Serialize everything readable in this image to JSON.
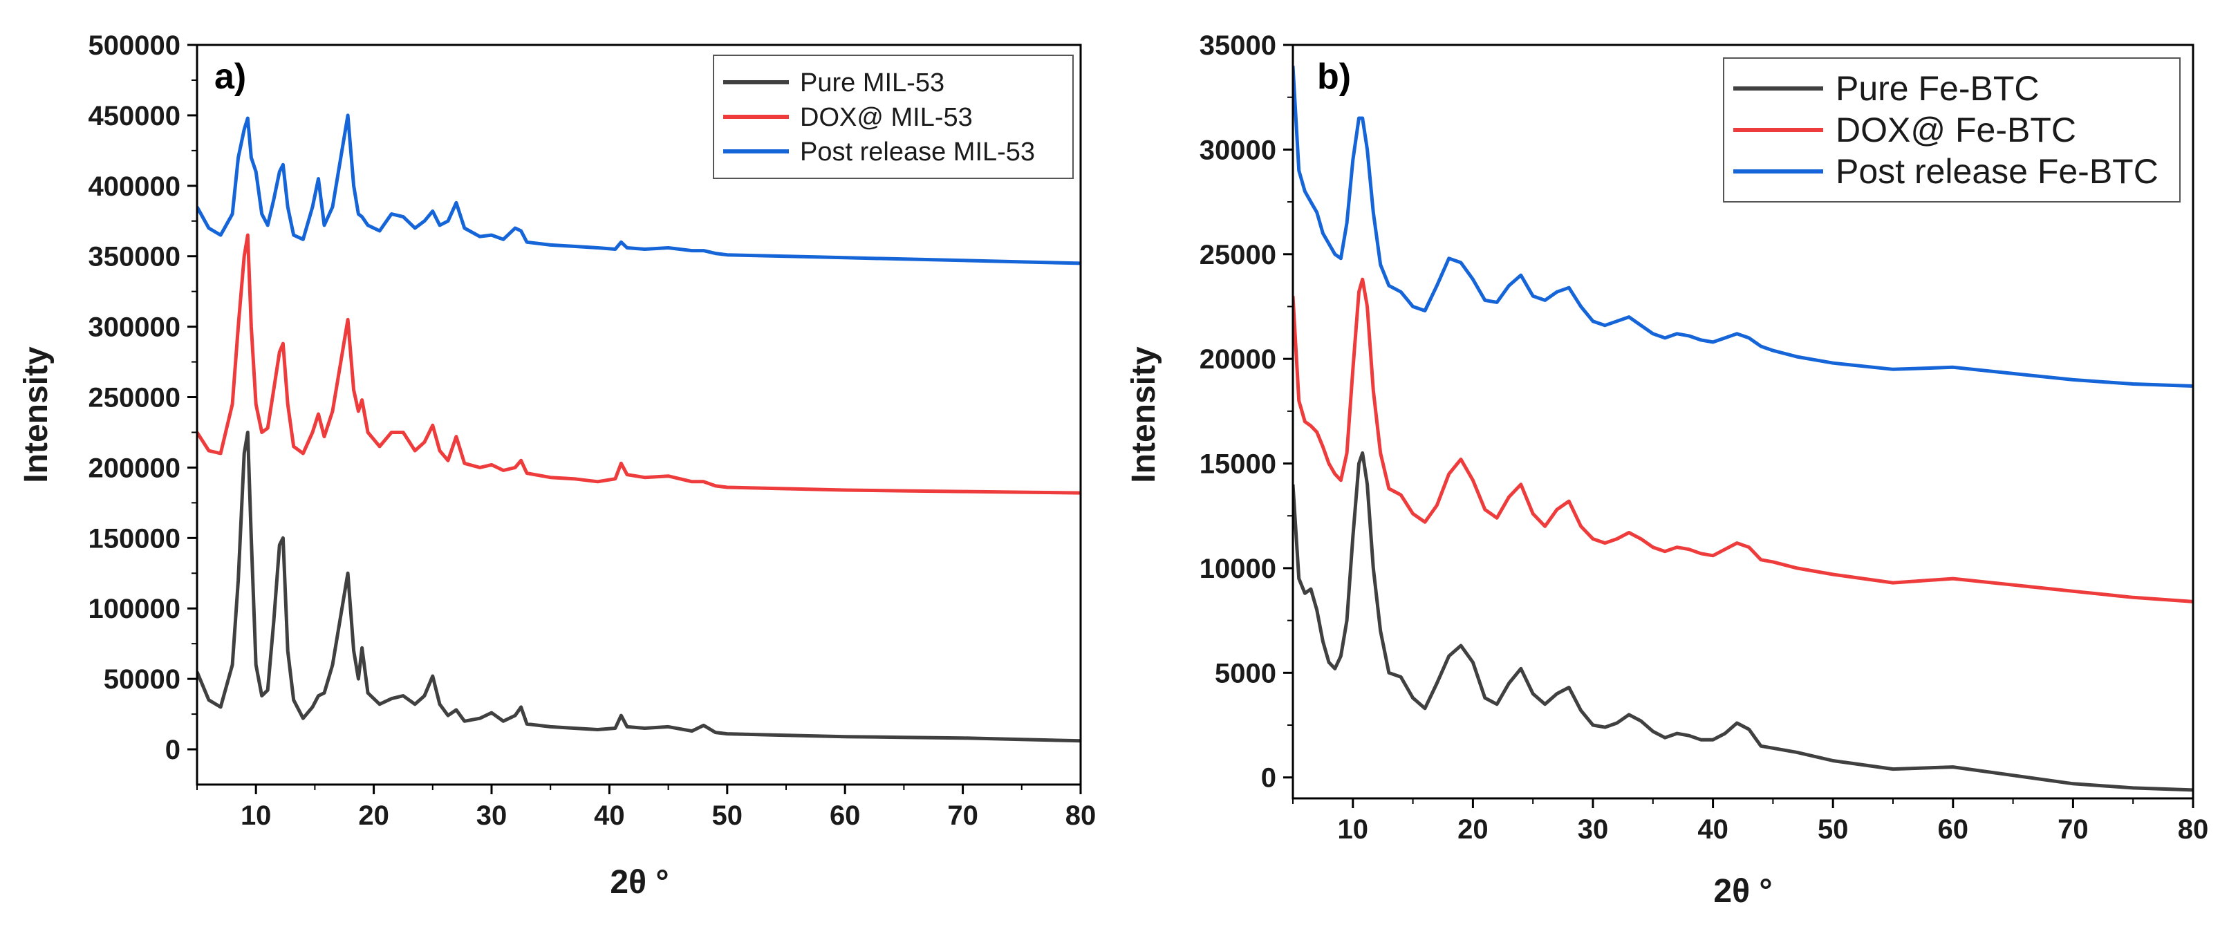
{
  "chart_data": [
    {
      "type": "line",
      "panel_label": "a)",
      "xlabel": "2θ °",
      "ylabel": "Intensity",
      "xlim": [
        5,
        80
      ],
      "ylim": [
        -25000,
        500000
      ],
      "x_ticks": [
        "10",
        "20",
        "30",
        "40",
        "50",
        "60",
        "70",
        "80"
      ],
      "y_ticks": [
        "0",
        "50000",
        "100000",
        "150000",
        "200000",
        "250000",
        "300000",
        "350000",
        "400000",
        "450000",
        "500000"
      ],
      "legend_position": "top-right",
      "series": [
        {
          "name": "Pure MIL-53",
          "color": "#404040",
          "x": [
            5,
            6,
            7,
            8,
            8.5,
            9,
            9.3,
            9.6,
            10,
            10.5,
            11,
            11.5,
            12,
            12.3,
            12.7,
            13.2,
            14,
            14.8,
            15.3,
            15.8,
            16.5,
            17.2,
            17.8,
            18.3,
            18.7,
            19,
            19.5,
            20.5,
            21.5,
            22.5,
            23.5,
            24.3,
            25,
            25.6,
            26.3,
            27,
            27.7,
            29,
            30,
            31,
            32,
            32.5,
            33,
            35,
            37,
            39,
            40.5,
            41,
            41.5,
            43,
            45,
            47,
            48,
            49,
            50,
            55,
            60,
            65,
            70,
            75,
            80
          ],
          "values": [
            55000,
            35000,
            30000,
            60000,
            120000,
            210000,
            225000,
            150000,
            60000,
            38000,
            42000,
            90000,
            145000,
            150000,
            70000,
            35000,
            22000,
            30000,
            38000,
            40000,
            60000,
            95000,
            125000,
            70000,
            50000,
            72000,
            40000,
            32000,
            36000,
            38000,
            32000,
            38000,
            52000,
            32000,
            24000,
            28000,
            20000,
            22000,
            26000,
            20000,
            24000,
            30000,
            18000,
            16000,
            15000,
            14000,
            15000,
            24000,
            16000,
            15000,
            16000,
            13000,
            17000,
            12000,
            11000,
            10000,
            9000,
            8500,
            8000,
            7000,
            6000
          ]
        },
        {
          "name": "DOX@ MIL-53",
          "color": "#ee3b3b",
          "x": [
            5,
            6,
            7,
            8,
            8.5,
            9,
            9.3,
            9.6,
            10,
            10.5,
            11,
            11.5,
            12,
            12.3,
            12.7,
            13.2,
            14,
            14.8,
            15.3,
            15.8,
            16.5,
            17.2,
            17.8,
            18.3,
            18.7,
            19,
            19.5,
            20.5,
            21.5,
            22.5,
            23.5,
            24.3,
            25,
            25.6,
            26.3,
            27,
            27.7,
            29,
            30,
            31,
            32,
            32.5,
            33,
            35,
            37,
            39,
            40.5,
            41,
            41.5,
            43,
            45,
            47,
            48,
            49,
            50,
            55,
            60,
            65,
            70,
            75,
            80
          ],
          "values": [
            225000,
            212000,
            210000,
            245000,
            300000,
            350000,
            365000,
            300000,
            245000,
            225000,
            228000,
            255000,
            282000,
            288000,
            245000,
            215000,
            210000,
            225000,
            238000,
            222000,
            240000,
            275000,
            305000,
            255000,
            240000,
            248000,
            225000,
            215000,
            225000,
            225000,
            212000,
            218000,
            230000,
            212000,
            205000,
            222000,
            203000,
            200000,
            202000,
            198000,
            200000,
            205000,
            196000,
            193000,
            192000,
            190000,
            192000,
            203000,
            195000,
            193000,
            194000,
            190000,
            190000,
            187000,
            186000,
            185000,
            184000,
            183500,
            183000,
            182500,
            182000
          ]
        },
        {
          "name": "Post release MIL-53",
          "color": "#1565d8",
          "x": [
            5,
            6,
            7,
            8,
            8.5,
            9,
            9.3,
            9.6,
            10,
            10.5,
            11,
            11.5,
            12,
            12.3,
            12.7,
            13.2,
            14,
            14.8,
            15.3,
            15.8,
            16.5,
            17.2,
            17.8,
            18.3,
            18.7,
            19,
            19.5,
            20.5,
            21.5,
            22.5,
            23.5,
            24.3,
            25,
            25.6,
            26.3,
            27,
            27.7,
            29,
            30,
            31,
            32,
            32.5,
            33,
            35,
            37,
            39,
            40.5,
            41,
            41.5,
            43,
            45,
            47,
            48,
            49,
            50,
            55,
            60,
            65,
            70,
            75,
            80
          ],
          "values": [
            385000,
            370000,
            365000,
            380000,
            420000,
            440000,
            448000,
            420000,
            410000,
            380000,
            372000,
            390000,
            410000,
            415000,
            385000,
            365000,
            362000,
            385000,
            405000,
            372000,
            385000,
            420000,
            450000,
            400000,
            380000,
            378000,
            372000,
            368000,
            380000,
            378000,
            370000,
            375000,
            382000,
            372000,
            375000,
            388000,
            370000,
            364000,
            365000,
            362000,
            370000,
            368000,
            360000,
            358000,
            357000,
            356000,
            355000,
            360000,
            356000,
            355000,
            356000,
            354000,
            354000,
            352000,
            351000,
            350000,
            349000,
            348000,
            347000,
            346000,
            345000
          ]
        }
      ]
    },
    {
      "type": "line",
      "panel_label": "b)",
      "xlabel": "2θ °",
      "ylabel": "Intensity",
      "xlim": [
        5,
        80
      ],
      "ylim": [
        -1000,
        35000
      ],
      "x_ticks": [
        "10",
        "20",
        "30",
        "40",
        "50",
        "60",
        "70",
        "80"
      ],
      "y_ticks": [
        "0",
        "5000",
        "10000",
        "15000",
        "20000",
        "25000",
        "30000",
        "35000"
      ],
      "legend_position": "top-right",
      "series": [
        {
          "name": "Pure Fe-BTC",
          "color": "#404040",
          "x": [
            5,
            5.5,
            6,
            6.5,
            7,
            7.5,
            8,
            8.5,
            9,
            9.5,
            10,
            10.5,
            10.8,
            11.2,
            11.7,
            12.3,
            13,
            14,
            15,
            16,
            17,
            18,
            19,
            20,
            21,
            22,
            23,
            24,
            25,
            26,
            27,
            28,
            29,
            30,
            31,
            32,
            33,
            34,
            35,
            36,
            37,
            38,
            39,
            40,
            41,
            42,
            43,
            44,
            45,
            47,
            50,
            55,
            60,
            65,
            70,
            75,
            80
          ],
          "values": [
            14000,
            9500,
            8800,
            9000,
            8000,
            6500,
            5500,
            5200,
            5800,
            7500,
            11500,
            15000,
            15500,
            14000,
            10000,
            7000,
            5000,
            4800,
            3800,
            3300,
            4500,
            5800,
            6300,
            5500,
            3800,
            3500,
            4500,
            5200,
            4000,
            3500,
            4000,
            4300,
            3200,
            2500,
            2400,
            2600,
            3000,
            2700,
            2200,
            1900,
            2100,
            2000,
            1800,
            1800,
            2100,
            2600,
            2300,
            1500,
            1400,
            1200,
            800,
            400,
            500,
            100,
            -300,
            -500,
            -600
          ]
        },
        {
          "name": "DOX@ Fe-BTC",
          "color": "#ee3b3b",
          "x": [
            5,
            5.5,
            6,
            6.5,
            7,
            7.5,
            8,
            8.5,
            9,
            9.5,
            10,
            10.5,
            10.8,
            11.2,
            11.7,
            12.3,
            13,
            14,
            15,
            16,
            17,
            18,
            19,
            20,
            21,
            22,
            23,
            24,
            25,
            26,
            27,
            28,
            29,
            30,
            31,
            32,
            33,
            34,
            35,
            36,
            37,
            38,
            39,
            40,
            41,
            42,
            43,
            44,
            45,
            47,
            50,
            55,
            60,
            65,
            70,
            75,
            80
          ],
          "values": [
            23000,
            18000,
            17000,
            16800,
            16500,
            15800,
            15000,
            14500,
            14200,
            15500,
            19500,
            23200,
            23800,
            22500,
            18500,
            15500,
            13800,
            13500,
            12600,
            12200,
            13000,
            14500,
            15200,
            14200,
            12800,
            12400,
            13400,
            14000,
            12600,
            12000,
            12800,
            13200,
            12000,
            11400,
            11200,
            11400,
            11700,
            11400,
            11000,
            10800,
            11000,
            10900,
            10700,
            10600,
            10900,
            11200,
            11000,
            10400,
            10300,
            10000,
            9700,
            9300,
            9500,
            9200,
            8900,
            8600,
            8400
          ]
        },
        {
          "name": "Post release Fe-BTC",
          "color": "#1565d8",
          "x": [
            5,
            5.5,
            6,
            6.5,
            7,
            7.5,
            8,
            8.5,
            9,
            9.5,
            10,
            10.5,
            10.8,
            11.2,
            11.7,
            12.3,
            13,
            14,
            15,
            16,
            17,
            18,
            19,
            20,
            21,
            22,
            23,
            24,
            25,
            26,
            27,
            28,
            29,
            30,
            31,
            32,
            33,
            34,
            35,
            36,
            37,
            38,
            39,
            40,
            41,
            42,
            43,
            44,
            45,
            47,
            50,
            55,
            60,
            65,
            70,
            75,
            80
          ],
          "values": [
            34000,
            29000,
            28000,
            27500,
            27000,
            26000,
            25500,
            25000,
            24800,
            26500,
            29500,
            31500,
            31500,
            30000,
            27000,
            24500,
            23500,
            23200,
            22500,
            22300,
            23500,
            24800,
            24600,
            23800,
            22800,
            22700,
            23500,
            24000,
            23000,
            22800,
            23200,
            23400,
            22500,
            21800,
            21600,
            21800,
            22000,
            21600,
            21200,
            21000,
            21200,
            21100,
            20900,
            20800,
            21000,
            21200,
            21000,
            20600,
            20400,
            20100,
            19800,
            19500,
            19600,
            19300,
            19000,
            18800,
            18700
          ]
        }
      ]
    }
  ]
}
